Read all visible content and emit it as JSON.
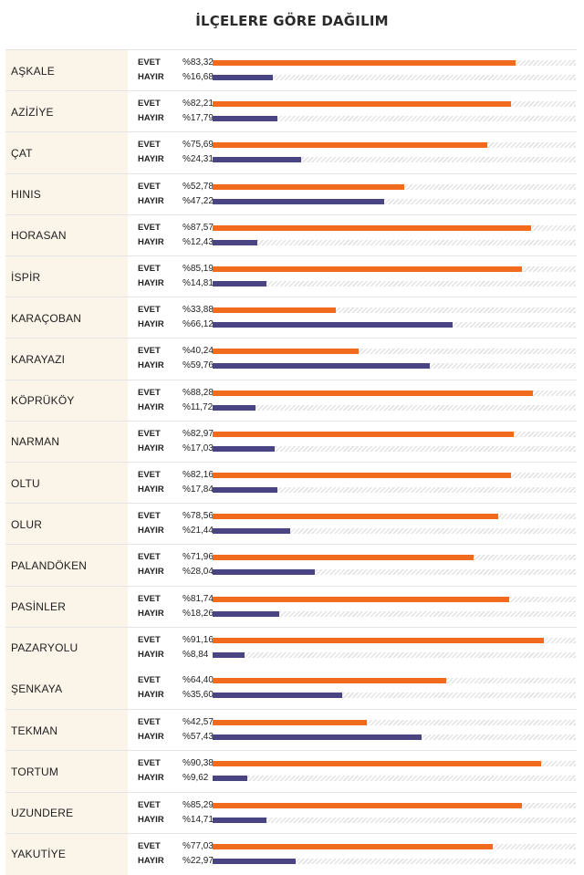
{
  "chart_data": {
    "type": "bar",
    "title": "İLÇELERE GÖRE DAĞILIM",
    "orientation": "horizontal",
    "unit_prefix": "%",
    "xlim": [
      0,
      100
    ],
    "series": [
      {
        "name": "EVET",
        "color": "#f06b1e"
      },
      {
        "name": "HAYIR",
        "color": "#4a4482"
      }
    ],
    "rows": [
      {
        "district": "AŞKALE",
        "evet": 83.32,
        "hayir": 16.68,
        "evet_label": "%83,32",
        "hayir_label": "%16,68"
      },
      {
        "district": "AZİZİYE",
        "evet": 82.21,
        "hayir": 17.79,
        "evet_label": "%82,21",
        "hayir_label": "%17,79"
      },
      {
        "district": "ÇAT",
        "evet": 75.69,
        "hayir": 24.31,
        "evet_label": "%75,69",
        "hayir_label": "%24,31"
      },
      {
        "district": "HINIS",
        "evet": 52.78,
        "hayir": 47.22,
        "evet_label": "%52,78",
        "hayir_label": "%47,22"
      },
      {
        "district": "HORASAN",
        "evet": 87.57,
        "hayir": 12.43,
        "evet_label": "%87,57",
        "hayir_label": "%12,43"
      },
      {
        "district": "İSPİR",
        "evet": 85.19,
        "hayir": 14.81,
        "evet_label": "%85,19",
        "hayir_label": "%14,81"
      },
      {
        "district": "KARAÇOBAN",
        "evet": 33.88,
        "hayir": 66.12,
        "evet_label": "%33,88",
        "hayir_label": "%66,12"
      },
      {
        "district": "KARAYAZI",
        "evet": 40.24,
        "hayir": 59.76,
        "evet_label": "%40,24",
        "hayir_label": "%59,76"
      },
      {
        "district": "KÖPRÜKÖY",
        "evet": 88.28,
        "hayir": 11.72,
        "evet_label": "%88,28",
        "hayir_label": "%11,72"
      },
      {
        "district": "NARMAN",
        "evet": 82.97,
        "hayir": 17.03,
        "evet_label": "%82,97",
        "hayir_label": "%17,03"
      },
      {
        "district": "OLTU",
        "evet": 82.16,
        "hayir": 17.84,
        "evet_label": "%82,16",
        "hayir_label": "%17,84"
      },
      {
        "district": "OLUR",
        "evet": 78.56,
        "hayir": 21.44,
        "evet_label": "%78,56",
        "hayir_label": "%21,44"
      },
      {
        "district": "PALANDÖKEN",
        "evet": 71.96,
        "hayir": 28.04,
        "evet_label": "%71,96",
        "hayir_label": "%28,04"
      },
      {
        "district": "PASİNLER",
        "evet": 81.74,
        "hayir": 18.26,
        "evet_label": "%81,74",
        "hayir_label": "%18,26"
      },
      {
        "district": "PAZARYOLU",
        "evet": 91.16,
        "hayir": 8.84,
        "evet_label": "%91,16",
        "hayir_label": "%8,84"
      },
      {
        "district": "ŞENKAYA",
        "evet": 64.4,
        "hayir": 35.6,
        "evet_label": "%64,40",
        "hayir_label": "%35,60"
      },
      {
        "district": "TEKMAN",
        "evet": 42.57,
        "hayir": 57.43,
        "evet_label": "%42,57",
        "hayir_label": "%57,43"
      },
      {
        "district": "TORTUM",
        "evet": 90.38,
        "hayir": 9.62,
        "evet_label": "%90,38",
        "hayir_label": "%9,62"
      },
      {
        "district": "UZUNDERE",
        "evet": 85.29,
        "hayir": 14.71,
        "evet_label": "%85,29",
        "hayir_label": "%14,71"
      },
      {
        "district": "YAKUTİYE",
        "evet": 77.03,
        "hayir": 22.97,
        "evet_label": "%77,03",
        "hayir_label": "%22,97"
      }
    ]
  }
}
